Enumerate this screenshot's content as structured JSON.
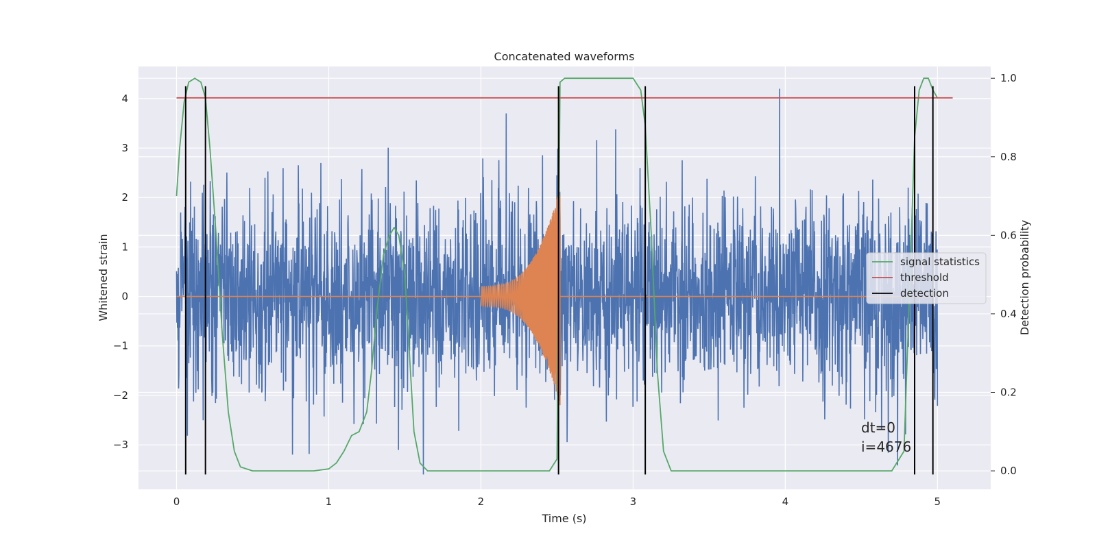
{
  "chart_data": {
    "type": "line",
    "title": "Concatenated waveforms",
    "xlabel": "Time (s)",
    "ylabel": "Whitened strain",
    "y2label": "Detection probability",
    "xlim": [
      -0.25,
      5.35
    ],
    "ylim": [
      -3.9,
      4.65
    ],
    "y2lim": [
      -0.047,
      1.03
    ],
    "x_ticks": [
      0,
      1,
      2,
      3,
      4,
      5
    ],
    "x_tick_labels": [
      "0",
      "1",
      "2",
      "3",
      "4",
      "5"
    ],
    "y_ticks": [
      -3,
      -2,
      -1,
      0,
      1,
      2,
      3,
      4
    ],
    "y_tick_labels": [
      "−3",
      "−2",
      "−1",
      "0",
      "1",
      "2",
      "3",
      "4"
    ],
    "y2_ticks": [
      0.0,
      0.2,
      0.4,
      0.6,
      0.8,
      1.0
    ],
    "y2_tick_labels": [
      "0.0",
      "0.2",
      "0.4",
      "0.6",
      "0.8",
      "1.0"
    ],
    "grid": true,
    "style": "seaborn-darkgrid",
    "legend_position": "center-right",
    "colors": {
      "strain": "#4c72b0",
      "injection": "#dd8452",
      "signal_statistics": "#55a868",
      "threshold": "#c44e52",
      "detection": "#000000",
      "plot_bg": "#eaeaf2"
    },
    "series": [
      {
        "name": "",
        "description_role": "whitened strain (noise)",
        "x_range": [
          0,
          5
        ],
        "y_envelope": [
          -3.6,
          4.2
        ]
      },
      {
        "name": "",
        "description_role": "injected chirp",
        "x_range": [
          2.0,
          2.52
        ],
        "amplitude_start": 0.2,
        "amplitude_end": 2.2
      },
      {
        "name": "signal statistics",
        "axis": "right",
        "x": [
          0.0,
          0.02,
          0.05,
          0.08,
          0.12,
          0.16,
          0.19,
          0.22,
          0.26,
          0.3,
          0.34,
          0.38,
          0.42,
          0.5,
          0.9,
          1.0,
          1.05,
          1.1,
          1.15,
          1.2,
          1.25,
          1.28,
          1.32,
          1.36,
          1.4,
          1.43,
          1.46,
          1.5,
          1.53,
          1.56,
          1.6,
          1.65,
          1.7,
          2.0,
          2.45,
          2.5,
          2.52,
          2.55,
          2.6,
          3.0,
          3.05,
          3.08,
          3.12,
          3.16,
          3.2,
          3.25,
          3.3,
          4.7,
          4.78,
          4.82,
          4.85,
          4.88,
          4.91,
          4.94,
          4.97,
          5.0
        ],
        "y": [
          0.7,
          0.82,
          0.94,
          0.99,
          1.0,
          0.99,
          0.95,
          0.82,
          0.6,
          0.35,
          0.15,
          0.05,
          0.01,
          0.0,
          0.0,
          0.005,
          0.02,
          0.05,
          0.09,
          0.1,
          0.15,
          0.25,
          0.42,
          0.55,
          0.6,
          0.62,
          0.6,
          0.5,
          0.3,
          0.1,
          0.02,
          0.0,
          0.0,
          0.0,
          0.0,
          0.03,
          0.99,
          1.0,
          1.0,
          1.0,
          0.97,
          0.88,
          0.6,
          0.25,
          0.05,
          0.0,
          0.0,
          0.0,
          0.05,
          0.5,
          0.85,
          0.97,
          1.0,
          1.0,
          0.97,
          0.95
        ]
      },
      {
        "name": "threshold",
        "axis": "right",
        "x": [
          0,
          5.1
        ],
        "y": [
          0.95,
          0.95
        ]
      },
      {
        "name": "detection",
        "axis": "left",
        "type": "vlines",
        "x": [
          0.06,
          0.19,
          2.51,
          3.08,
          4.85,
          4.97
        ],
        "ymin": -3.6,
        "ymax": 4.25
      }
    ],
    "legend": [
      {
        "label": "signal statistics",
        "series": "signal_statistics"
      },
      {
        "label": "threshold",
        "series": "threshold"
      },
      {
        "label": "detection",
        "series": "detection"
      }
    ],
    "annotations": [
      "dt=0",
      "i=4676"
    ]
  }
}
